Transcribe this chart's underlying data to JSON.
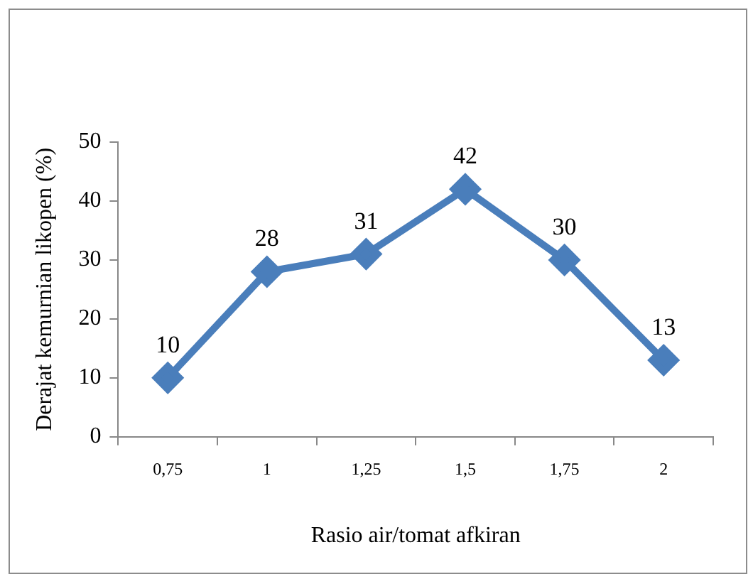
{
  "chart_data": {
    "type": "line",
    "xlabel": "Rasio air/tomat afkiran",
    "ylabel": "Derajat kemurnian likopen (%)",
    "categories": [
      "0,75",
      "1",
      "1,25",
      "1,5",
      "1,75",
      "2"
    ],
    "series": [
      {
        "color": "#4a7ebb",
        "values": [
          10,
          28,
          31,
          42,
          30,
          13
        ]
      }
    ],
    "ylim": [
      0,
      50
    ],
    "yticks": [
      0,
      10,
      20,
      30,
      40,
      50
    ],
    "grid": false,
    "legend": false,
    "marker": "diamond",
    "line_style": "solid",
    "data_labels": true
  }
}
